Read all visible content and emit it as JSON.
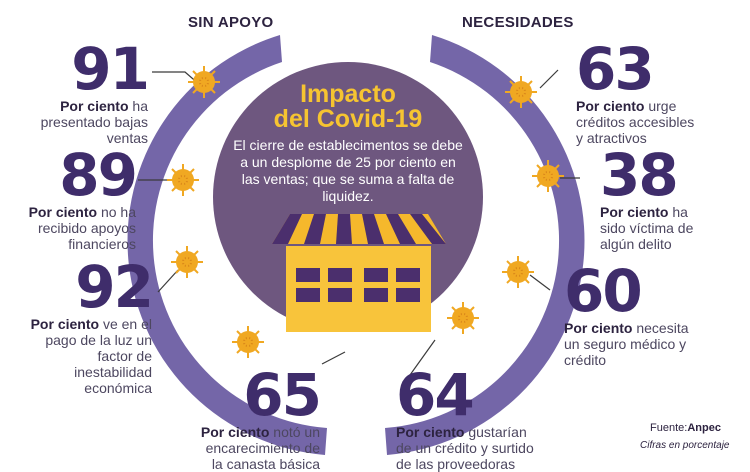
{
  "headers": {
    "left": "SIN APOYO",
    "right": "NECESIDADES"
  },
  "center": {
    "title_line1": "Impacto",
    "title_line2": "del Covid-19",
    "text": "El cierre de establecimentos se debe a un desplome de 25 por ciento en las ventas; que se suma a falta de liquidez."
  },
  "stats": [
    {
      "value": "91",
      "bold": "Por ciento",
      "rest": " ha presentado bajas ventas"
    },
    {
      "value": "89",
      "bold": "Por ciento",
      "rest": " no ha recibido apoyos financieros"
    },
    {
      "value": "92",
      "bold": "Por ciento",
      "rest": " ve en el pago de la luz un factor de inestabilidad económica"
    },
    {
      "value": "65",
      "bold": "Por ciento",
      "rest": " notó un encarecimiento de la canasta básica"
    },
    {
      "value": "63",
      "bold": "Por ciento",
      "rest": " urge créditos accesibles y atractivos"
    },
    {
      "value": "38",
      "bold": "Por ciento",
      "rest": " ha sido víctima de algún delito"
    },
    {
      "value": "60",
      "bold": "Por ciento",
      "rest": " necesita un seguro médico y crédito"
    },
    {
      "value": "64",
      "bold": "Por ciento",
      "rest": " gustarían de un crédito y surtido de las proveedoras"
    }
  ],
  "source": {
    "label": "Fuente:",
    "name": "Anpec"
  },
  "note": "Cifras en porcentaje",
  "colors": {
    "ring": "#7466a8",
    "center": "#6e577f",
    "title": "#f6c431",
    "number": "#3f2d6b",
    "virus": "#f0a822",
    "store": "#f8c43b"
  }
}
